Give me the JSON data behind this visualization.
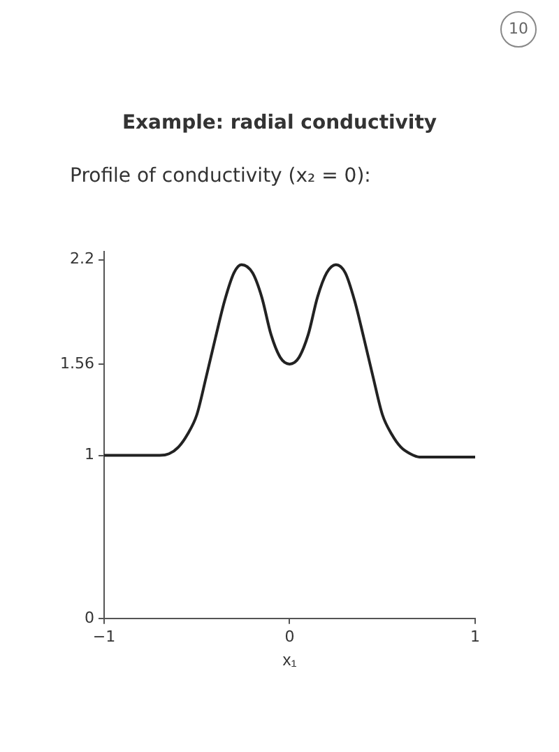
{
  "chart_data": {
    "type": "line",
    "title": "Example: radial conductivity",
    "subtitle": "Profile of conductivity (x₂ = 0):",
    "xlabel": "x₁",
    "annotations": [
      "10"
    ],
    "x": [
      -1,
      -0.7,
      -0.65,
      -0.6,
      -0.55,
      -0.5,
      -0.45,
      -0.4,
      -0.35,
      -0.3,
      -0.26,
      -0.2,
      -0.15,
      -0.1,
      -0.05,
      0,
      0.05,
      0.1,
      0.15,
      0.2,
      0.25,
      0.3,
      0.35,
      0.4,
      0.45,
      0.5,
      0.55,
      0.6,
      0.65,
      0.7,
      1
    ],
    "series": [
      {
        "color": "#222222",
        "values": [
          1.0,
          1.0,
          1.01,
          1.05,
          1.13,
          1.25,
          1.48,
          1.72,
          1.95,
          2.12,
          2.17,
          2.12,
          1.97,
          1.74,
          1.6,
          1.56,
          1.6,
          1.74,
          1.97,
          2.12,
          2.17,
          2.12,
          1.95,
          1.72,
          1.48,
          1.25,
          1.13,
          1.05,
          1.01,
          0.99,
          0.99
        ]
      }
    ],
    "xlim": [
      -1,
      1
    ],
    "xticks": [
      {
        "value": -1,
        "label": "−1"
      },
      0,
      1
    ],
    "ylim": [
      0,
      2.25
    ],
    "yticks": [
      0,
      1,
      1.56,
      2.2
    ],
    "grid": false,
    "legend": false,
    "marker": "none",
    "line_style": "solid"
  }
}
